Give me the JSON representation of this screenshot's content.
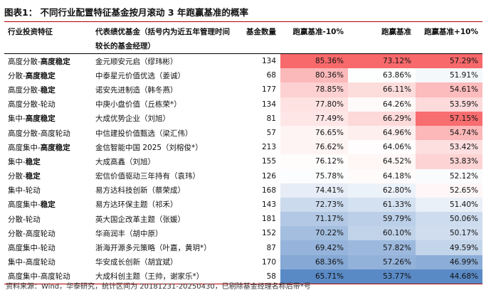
{
  "title": "图表1：  不同行业配置特征基金按月滚动 3 年跑赢基准的概率",
  "headers": [
    "行业投资特征",
    "代表绩优基金（括号内为近五年管理时间较长的基金经理）",
    "基金数量",
    "跑赢基准-10%",
    "跑赢基准",
    "跑赢基准+10%"
  ],
  "colors": {
    "title_rule": "#b00000",
    "high": "#f8696b",
    "mid": "#ffffff",
    "low": "#5a8ac6"
  },
  "rows": [
    {
      "cat_a": "高度分散-",
      "cat_b": "高度稳定",
      "fund": "金元顺安元启（缪玮彬）",
      "count": "134",
      "p1": "85.36%",
      "p2": "73.12%",
      "p3": "57.29%"
    },
    {
      "cat_a": "分散-",
      "cat_b": "高度稳定",
      "fund": "中泰星元价值优选（姜诚）",
      "count": "68",
      "p1": "80.36%",
      "p2": "63.86%",
      "p3": "51.91%"
    },
    {
      "cat_a": "高度分散-",
      "cat_b": "稳定",
      "fund": "诺安先进制造（韩冬燕）",
      "count": "177",
      "p1": "78.85%",
      "p2": "66.11%",
      "p3": "54.61%"
    },
    {
      "cat_a": "高度分散-轮动",
      "cat_b": "",
      "fund": "中庚小盘价值（丘栋荣*）",
      "count": "134",
      "p1": "77.80%",
      "p2": "64.26%",
      "p3": "53.59%"
    },
    {
      "cat_a": "集中-",
      "cat_b": "高度稳定",
      "fund": "大成优势企业（刘旭）",
      "count": "81",
      "p1": "77.49%",
      "p2": "66.29%",
      "p3": "57.15%"
    },
    {
      "cat_a": "高度分散-高度轮动",
      "cat_b": "",
      "fund": "中信建投价值甄选（梁汇伟）",
      "count": "57",
      "p1": "76.65%",
      "p2": "64.96%",
      "p3": "54.74%"
    },
    {
      "cat_a": "高度集中-",
      "cat_b": "高度稳定",
      "fund": "金信智能中国 2025（刘榕俊*）",
      "count": "213",
      "p1": "76.62%",
      "p2": "64.06%",
      "p3": "53.42%"
    },
    {
      "cat_a": "集中-",
      "cat_b": "稳定",
      "fund": "大成高鑫（刘旭）",
      "count": "155",
      "p1": "76.12%",
      "p2": "64.52%",
      "p3": "53.83%"
    },
    {
      "cat_a": "分散-",
      "cat_b": "稳定",
      "fund": "宏信价值驱动三年持有（袁玮）",
      "count": "126",
      "p1": "75.78%",
      "p2": "64.18%",
      "p3": "52.12%"
    },
    {
      "cat_a": "集中-轮动",
      "cat_b": "",
      "fund": "易方达科技创新（蔡荣成）",
      "count": "168",
      "p1": "74.41%",
      "p2": "62.80%",
      "p3": "52.65%"
    },
    {
      "cat_a": "高度集中-",
      "cat_b": "稳定",
      "fund": "易方达环保主题（祁禾）",
      "count": "143",
      "p1": "72.73%",
      "p2": "61.33%",
      "p3": "51.40%"
    },
    {
      "cat_a": "分散-轮动",
      "cat_b": "",
      "fund": "英大国企改革主题（张媛）",
      "count": "181",
      "p1": "71.17%",
      "p2": "59.79%",
      "p3": "50.06%"
    },
    {
      "cat_a": "分散-高度轮动",
      "cat_b": "",
      "fund": "华商润丰（胡中原）",
      "count": "152",
      "p1": "70.22%",
      "p2": "60.10%",
      "p3": "50.17%"
    },
    {
      "cat_a": "高度集中-轮动",
      "cat_b": "",
      "fund": "浙海开源多元策略（叶嘉，黄玥*）",
      "count": "87",
      "p1": "69.42%",
      "p2": "57.82%",
      "p3": "49.59%"
    },
    {
      "cat_a": "集中-高度轮动",
      "cat_b": "",
      "fund": "华安成长创新（胡宜斌）",
      "count": "170",
      "p1": "68.36%",
      "p2": "57.26%",
      "p3": "46.99%"
    },
    {
      "cat_a": "高度集中-高度轮动",
      "cat_b": "",
      "fund": "大成科创主题（王帅，谢家乐*）",
      "count": "58",
      "p1": "65.71%",
      "p2": "53.77%",
      "p3": "44.68%"
    }
  ],
  "source": "资料来源：Wind，华泰研究，统计区间为 20181231-20250430，已剔除基金经理名称后带*号"
}
